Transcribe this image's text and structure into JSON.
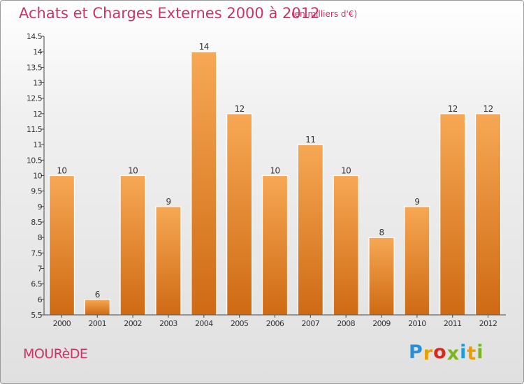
{
  "title": "Achats et Charges Externes 2000 à 2012",
  "subtitle": "(en milliers d'€)",
  "commune": "MOURèDE",
  "logo": {
    "letters": [
      "P",
      "r",
      "o",
      "x",
      "i",
      "t",
      "i"
    ],
    "colors": [
      "#2a8ed6",
      "#e8a000",
      "#d52b1e",
      "#7bb61f",
      "#1e9be0",
      "#e8a000",
      "#7bb61f"
    ]
  },
  "colors": {
    "bar_top": "#f7a854",
    "bar_bottom": "#cf6a14",
    "title": "#cc3366"
  },
  "chart_data": {
    "type": "bar",
    "title": "Achats et Charges Externes 2000 à 2012",
    "subtitle": "(en milliers d'€)",
    "categories": [
      "2000",
      "2001",
      "2002",
      "2003",
      "2004",
      "2005",
      "2006",
      "2007",
      "2008",
      "2009",
      "2010",
      "2011",
      "2012"
    ],
    "values": [
      10,
      6,
      10,
      9,
      14,
      12,
      10,
      11,
      10,
      8,
      9,
      12,
      12
    ],
    "xlabel": "",
    "ylabel": "",
    "ylim": [
      5.5,
      14.5
    ],
    "yticks": [
      "5.5",
      "6",
      "6.5",
      "7",
      "7.5",
      "8",
      "8.5",
      "9",
      "9.5",
      "10",
      "10.5",
      "11",
      "11.5",
      "12",
      "12.5",
      "13",
      "13.5",
      "14",
      "14.5"
    ],
    "grid": false,
    "legend": "none"
  }
}
